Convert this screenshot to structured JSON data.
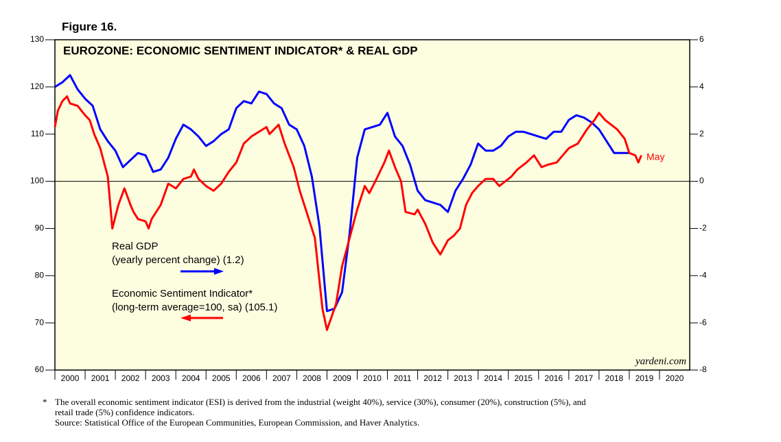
{
  "chart_data": {
    "type": "line",
    "figure_label": "Figure 16.",
    "title": "EUROZONE: ECONOMIC SENTIMENT INDICATOR* & REAL GDP",
    "annotations": [
      "Real GDP",
      "(yearly percent change) (1.2)",
      "Economic Sentiment Indicator*",
      "(long-term average=100, sa) (105.1)",
      "May"
    ],
    "source_mark": "yardeni.com",
    "footnote_marker": "*",
    "footnote": [
      "The overall economic sentiment indicator (ESI) is derived from the industrial (weight 40%), service (30%), consumer (20%), construction (5%), and",
      "retail trade (5%) confidence indicators.",
      "Source: Statistical Office of the European Communities, European Commission, and Haver Analytics."
    ],
    "xlim": [
      2000,
      2021
    ],
    "xticks": [
      {
        "value": 2000.5,
        "label": "2000"
      },
      {
        "value": 2001.5,
        "label": "2001"
      },
      {
        "value": 2002.5,
        "label": "2002"
      },
      {
        "value": 2003.5,
        "label": "2003"
      },
      {
        "value": 2004.5,
        "label": "2004"
      },
      {
        "value": 2005.5,
        "label": "2005"
      },
      {
        "value": 2006.5,
        "label": "2006"
      },
      {
        "value": 2007.5,
        "label": "2007"
      },
      {
        "value": 2008.5,
        "label": "2008"
      },
      {
        "value": 2009.5,
        "label": "2009"
      },
      {
        "value": 2010.5,
        "label": "2010"
      },
      {
        "value": 2011.5,
        "label": "2011"
      },
      {
        "value": 2012.5,
        "label": "2012"
      },
      {
        "value": 2013.5,
        "label": "2013"
      },
      {
        "value": 2014.5,
        "label": "2014"
      },
      {
        "value": 2015.5,
        "label": "2015"
      },
      {
        "value": 2016.5,
        "label": "2016"
      },
      {
        "value": 2017.5,
        "label": "2017"
      },
      {
        "value": 2018.5,
        "label": "2018"
      },
      {
        "value": 2019.5,
        "label": "2019"
      },
      {
        "value": 2020.5,
        "label": "2020"
      }
    ],
    "ylim": [
      60,
      130
    ],
    "yticks": [
      60,
      70,
      80,
      90,
      100,
      110,
      120,
      130
    ],
    "y2lim": [
      -8,
      6
    ],
    "y2ticks": [
      -8,
      -6,
      -4,
      -2,
      0,
      2,
      4,
      6
    ],
    "hline": 100,
    "background": "#fdfde0",
    "series": [
      {
        "name": "Real GDP",
        "color": "#0000ff",
        "axis": "y2",
        "x": [
          2000.0,
          2000.25,
          2000.5,
          2000.75,
          2001.0,
          2001.25,
          2001.5,
          2001.75,
          2002.0,
          2002.25,
          2002.5,
          2002.75,
          2003.0,
          2003.25,
          2003.5,
          2003.75,
          2004.0,
          2004.25,
          2004.5,
          2004.75,
          2005.0,
          2005.25,
          2005.5,
          2005.75,
          2006.0,
          2006.25,
          2006.5,
          2006.75,
          2007.0,
          2007.25,
          2007.5,
          2007.75,
          2008.0,
          2008.25,
          2008.5,
          2008.75,
          2009.0,
          2009.25,
          2009.5,
          2009.75,
          2010.0,
          2010.25,
          2010.5,
          2010.75,
          2011.0,
          2011.25,
          2011.5,
          2011.75,
          2012.0,
          2012.25,
          2012.5,
          2012.75,
          2013.0,
          2013.25,
          2013.5,
          2013.75,
          2014.0,
          2014.25,
          2014.5,
          2014.75,
          2015.0,
          2015.25,
          2015.5,
          2015.75,
          2016.0,
          2016.25,
          2016.5,
          2016.75,
          2017.0,
          2017.25,
          2017.5,
          2017.75,
          2018.0,
          2018.25,
          2018.5,
          2018.75,
          2019.0
        ],
        "values": [
          4.0,
          4.2,
          4.5,
          3.9,
          3.5,
          3.2,
          2.2,
          1.7,
          1.3,
          0.6,
          0.9,
          1.2,
          1.1,
          0.4,
          0.5,
          1.0,
          1.8,
          2.4,
          2.2,
          1.9,
          1.5,
          1.7,
          2.0,
          2.2,
          3.1,
          3.4,
          3.3,
          3.8,
          3.7,
          3.3,
          3.1,
          2.4,
          2.2,
          1.5,
          0.2,
          -1.9,
          -5.5,
          -5.4,
          -4.7,
          -2.2,
          1.0,
          2.2,
          2.3,
          2.4,
          2.9,
          1.9,
          1.5,
          0.7,
          -0.4,
          -0.8,
          -0.9,
          -1.0,
          -1.3,
          -0.4,
          0.1,
          0.7,
          1.6,
          1.3,
          1.3,
          1.5,
          1.9,
          2.1,
          2.1,
          2.0,
          1.9,
          1.8,
          2.1,
          2.1,
          2.6,
          2.8,
          2.7,
          2.5,
          2.2,
          1.7,
          1.2,
          1.2,
          1.2
        ]
      },
      {
        "name": "Economic Sentiment Indicator*",
        "color": "#ff0000",
        "axis": "y",
        "x": [
          2000.0,
          2000.1,
          2000.25,
          2000.4,
          2000.5,
          2000.75,
          2001.0,
          2001.15,
          2001.3,
          2001.5,
          2001.75,
          2001.9,
          2002.1,
          2002.3,
          2002.5,
          2002.6,
          2002.75,
          2003.0,
          2003.1,
          2003.2,
          2003.5,
          2003.75,
          2004.0,
          2004.25,
          2004.5,
          2004.6,
          2004.75,
          2005.0,
          2005.25,
          2005.5,
          2005.75,
          2006.0,
          2006.25,
          2006.5,
          2006.75,
          2007.0,
          2007.1,
          2007.4,
          2007.6,
          2007.9,
          2008.1,
          2008.35,
          2008.6,
          2008.85,
          2009.0,
          2009.3,
          2009.5,
          2009.75,
          2010.0,
          2010.25,
          2010.4,
          2010.6,
          2010.9,
          2011.05,
          2011.25,
          2011.45,
          2011.6,
          2011.9,
          2012.0,
          2012.25,
          2012.5,
          2012.75,
          2013.0,
          2013.2,
          2013.4,
          2013.6,
          2013.8,
          2014.0,
          2014.25,
          2014.5,
          2014.7,
          2014.9,
          2015.1,
          2015.3,
          2015.6,
          2015.85,
          2016.1,
          2016.3,
          2016.6,
          2016.8,
          2017.0,
          2017.3,
          2017.6,
          2017.85,
          2018.0,
          2018.2,
          2018.4,
          2018.6,
          2018.85,
          2019.0,
          2019.2,
          2019.3,
          2019.4
        ],
        "values": [
          111.5,
          115,
          117,
          118,
          116.5,
          116,
          114,
          113,
          110,
          107,
          101,
          90,
          95,
          98.5,
          95,
          93.5,
          92,
          91.5,
          90,
          92,
          95,
          99.5,
          98.5,
          100.5,
          101,
          102.5,
          100.5,
          99,
          98,
          99.5,
          102,
          104,
          108,
          109.5,
          110.5,
          111.5,
          110,
          112,
          108,
          103,
          98,
          93,
          88,
          73,
          68.5,
          74,
          82,
          88,
          94,
          99,
          97.5,
          100,
          104,
          106.5,
          103,
          100,
          93.5,
          93,
          94,
          91,
          87,
          84.5,
          87.5,
          88.5,
          90,
          95,
          97.5,
          99,
          100.5,
          100.5,
          99,
          100,
          101,
          102.5,
          104,
          105.5,
          103,
          103.5,
          104,
          105.5,
          107,
          108,
          111,
          113,
          114.5,
          113,
          112,
          111,
          109,
          106,
          105.5,
          104,
          105.5
        ]
      }
    ]
  }
}
